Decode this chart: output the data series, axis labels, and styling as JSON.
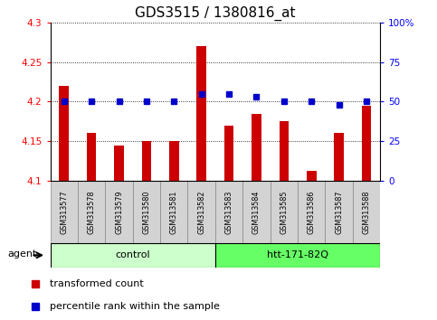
{
  "title": "GDS3515 / 1380816_at",
  "samples": [
    "GSM313577",
    "GSM313578",
    "GSM313579",
    "GSM313580",
    "GSM313581",
    "GSM313582",
    "GSM313583",
    "GSM313584",
    "GSM313585",
    "GSM313586",
    "GSM313587",
    "GSM313588"
  ],
  "red_values": [
    4.22,
    4.16,
    4.145,
    4.15,
    4.15,
    4.27,
    4.17,
    4.185,
    4.175,
    4.112,
    4.16,
    4.195
  ],
  "blue_values": [
    50,
    50,
    50,
    50,
    50,
    55,
    55,
    53,
    50,
    50,
    48,
    50
  ],
  "ylim_left": [
    4.1,
    4.3
  ],
  "ylim_right": [
    0,
    100
  ],
  "yticks_left": [
    4.1,
    4.15,
    4.2,
    4.25,
    4.3
  ],
  "yticks_right": [
    0,
    25,
    50,
    75,
    100
  ],
  "ytick_labels_left": [
    "4.1",
    "4.15",
    "4.2",
    "4.25",
    "4.3"
  ],
  "ytick_labels_right": [
    "0",
    "25",
    "50",
    "75",
    "100%"
  ],
  "group_labels": [
    "control",
    "htt-171-82Q"
  ],
  "group_colors_light": [
    "#ccffcc",
    "#66ff66"
  ],
  "group_colors_dark": [
    "#00cc00",
    "#00cc00"
  ],
  "group_ranges": [
    [
      0,
      5
    ],
    [
      6,
      11
    ]
  ],
  "agent_label": "agent",
  "bar_color": "#cc0000",
  "dot_color": "#0000cc",
  "background_color": "#ffffff",
  "plot_bg_color": "#ffffff",
  "title_fontsize": 11,
  "tick_fontsize": 7.5,
  "label_fontsize": 8,
  "legend_fontsize": 8
}
